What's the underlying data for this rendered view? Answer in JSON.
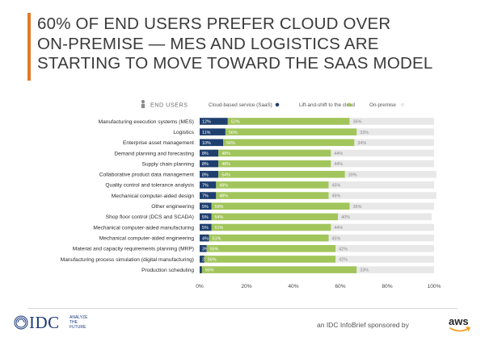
{
  "header": {
    "title_lines": [
      "60% OF END USERS PREFER CLOUD OVER",
      "ON-PREMISE — MES AND LOGISTICS ARE",
      "STARTING TO MOVE TOWARD THE SAAS MODEL"
    ]
  },
  "colors": {
    "accent": "#e07b2a",
    "saas": "#1f3f6f",
    "lift": "#a2c55b",
    "onprem": "#e8e8e8",
    "label_text": "#2a2a2a",
    "brand": "#1b3a7a"
  },
  "chart_data": {
    "type": "bar",
    "orientation": "horizontal",
    "stacked": true,
    "group_label": "END USERS",
    "group_icon": "person-icon",
    "categories": [
      "Manufacturing execution systems (MES)",
      "Logistics",
      "Enterprise asset management",
      "Demand planning and forecasting",
      "Supply chain planning",
      "Collaborative product data management",
      "Quality control and tolerance analysis",
      "Mechanical computer-aided design",
      "Other engineering",
      "Shop floor control (DCS and SCADA)",
      "Mechanical computer-aided manufacturing",
      "Mechanical computer-aided engineering",
      "Material and capacity requirements planning (MRP)",
      "Manufacturing process simulation (digital manufacturing)",
      "Production scheduling"
    ],
    "series": [
      {
        "name": "Cloud-based service (SaaS)",
        "values": [
          12,
          11,
          10,
          8,
          8,
          8,
          7,
          7,
          5,
          5,
          5,
          4,
          3,
          2,
          1
        ],
        "labels": [
          "12%",
          "11%",
          "10%",
          "8%",
          "8%",
          "8%",
          "7%",
          "7%",
          "5%",
          "5%",
          "5%",
          "4%",
          "3%",
          "2%",
          "1%"
        ]
      },
      {
        "name": "Lift-and-shift to the cloud",
        "values": [
          52,
          56,
          56,
          48,
          48,
          54,
          48,
          48,
          59,
          54,
          51,
          51,
          55,
          56,
          66
        ],
        "labels": [
          "52%",
          "56%",
          "56%",
          "48%",
          "48%",
          "54%",
          "48%",
          "48%",
          "59%",
          "54%",
          "51%",
          "51%",
          "55%",
          "56%",
          "66%"
        ]
      },
      {
        "name": "On-premise",
        "values": [
          36,
          33,
          34,
          44,
          44,
          39,
          45,
          46,
          36,
          40,
          44,
          45,
          42,
          42,
          33
        ],
        "labels": [
          "36%",
          "33%",
          "34%",
          "44%",
          "44%",
          "39%",
          "45%",
          "46%",
          "36%",
          "40%",
          "44%",
          "45%",
          "42%",
          "42%",
          "33%"
        ]
      }
    ],
    "xlim": [
      0,
      100
    ],
    "xticks": [
      "0%",
      "20%",
      "40%",
      "60%",
      "80%",
      "100%"
    ],
    "xtick_values": [
      0,
      20,
      40,
      60,
      80,
      100
    ],
    "legend_position": "top",
    "grid": false
  },
  "footer": {
    "brand": "IDC",
    "brand_tagline": "ANALYZE THE FUTURE",
    "sponsor_text": "an IDC InfoBrief sponsored by",
    "sponsor_brand": "aws"
  }
}
